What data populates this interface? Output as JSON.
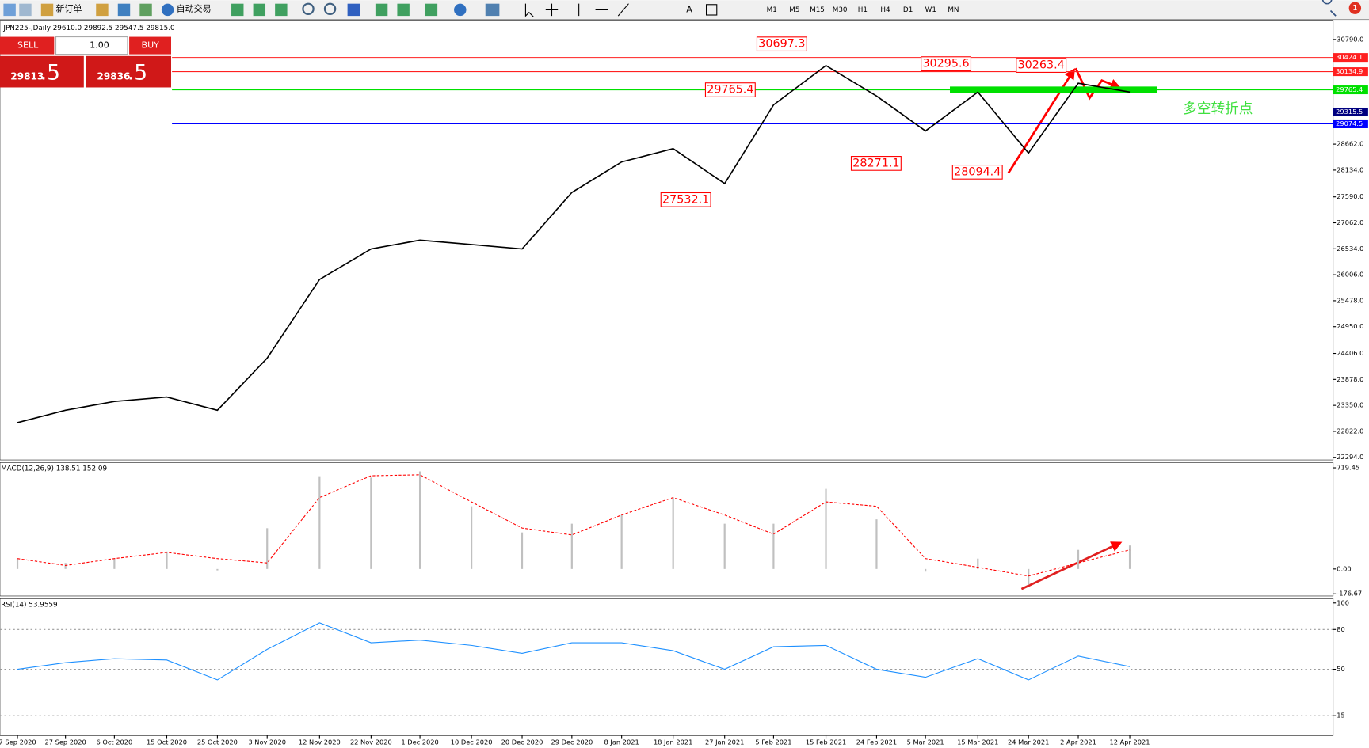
{
  "toolbar": {
    "new_order": "新订单",
    "auto_trading": "自动交易",
    "timeframes": [
      "M1",
      "M5",
      "M15",
      "M30",
      "H1",
      "H4",
      "D1",
      "W1",
      "MN"
    ],
    "badge": "1"
  },
  "trade_panel": {
    "sell": "SELL",
    "buy": "BUY",
    "volume": "1.00",
    "sell_price": {
      "main": "29813",
      "fraction": ".5"
    },
    "buy_price": {
      "main": "29836",
      "fraction": ".5"
    }
  },
  "chart_data": [
    {
      "type": "line",
      "title": "JPN225-,Daily 29610.0 29892.5 29547.5 29815.0",
      "categories": [
        "7 Sep 2020",
        "27 Sep 2020",
        "6 Oct 2020",
        "15 Oct 2020",
        "25 Oct 2020",
        "3 Nov 2020",
        "12 Nov 2020",
        "22 Nov 2020",
        "1 Dec 2020",
        "10 Dec 2020",
        "20 Dec 2020",
        "29 Dec 2020",
        "8 Jan 2021",
        "18 Jan 2021",
        "27 Jan 2021",
        "5 Feb 2021",
        "15 Feb 2021",
        "24 Feb 2021",
        "5 Mar 2021",
        "15 Mar 2021",
        "24 Mar 2021",
        "2 Apr 2021",
        "12 Apr 2021"
      ],
      "series": [
        {
          "color": "#000000",
          "values": [
            23000,
            23250,
            23430,
            23520,
            23250,
            24310,
            25910,
            26530,
            26710,
            26620,
            26530,
            27680,
            28300,
            28570,
            27860,
            29460,
            30260,
            29640,
            28930,
            29720,
            28480,
            29900,
            29720
          ]
        }
      ],
      "ylim": [
        22241,
        31145
      ],
      "yticks": [
        {
          "value": 30790,
          "label": "30790.0"
        },
        {
          "value": 28662,
          "label": "28662.0"
        },
        {
          "value": 28134,
          "label": "28134.0"
        },
        {
          "value": 27590,
          "label": "27590.0"
        },
        {
          "value": 27062,
          "label": "27062.0"
        },
        {
          "value": 26534,
          "label": "26534.0"
        },
        {
          "value": 26006,
          "label": "26006.0"
        },
        {
          "value": 25478,
          "label": "25478.0"
        },
        {
          "value": 24950,
          "label": "24950.0"
        },
        {
          "value": 24406,
          "label": "24406.0"
        },
        {
          "value": 23878,
          "label": "23878.0"
        },
        {
          "value": 23350,
          "label": "23350.0"
        },
        {
          "value": 22822,
          "label": "22822.0"
        },
        {
          "value": 22294,
          "label": "22294.0"
        }
      ],
      "levels": [
        {
          "value": 30424.1,
          "color": "#ff2020"
        },
        {
          "value": 30134.9,
          "color": "#ff2020"
        },
        {
          "value": 29765.4,
          "color": "#00e000"
        },
        {
          "value": 29315.5,
          "color": "#000080"
        },
        {
          "value": 29074.5,
          "color": "#0000ff"
        }
      ],
      "annotations": [
        30697.3,
        30295.6,
        30263.4,
        29765.4,
        28271.1,
        27532.1,
        28094.4
      ],
      "note": "多空转折点"
    },
    {
      "type": "macd",
      "title": "MACD(12,26,9) 138.51 152.09",
      "series": [
        {
          "name": "MACD",
          "color": "#c0c0c0",
          "values": [
            74,
            43,
            74,
            124,
            -10,
            290,
            660,
            650,
            694,
            446,
            260,
            322,
            384,
            508,
            322,
            322,
            570,
            353,
            -19,
            74,
            -112,
            136,
            167
          ]
        },
        {
          "name": "Signal",
          "color": "#ff0000",
          "values": [
            74,
            25,
            74,
            118,
            74,
            43,
            508,
            663,
            670,
            477,
            291,
            242,
            384,
            508,
            384,
            248,
            477,
            446,
            74,
            12,
            -50,
            43,
            136
          ]
        }
      ],
      "ylim": [
        -192,
        757
      ],
      "yticks": [
        {
          "value": 719.45,
          "label": "719.45"
        },
        {
          "value": 0,
          "label": "0.00"
        },
        {
          "value": -176.67,
          "label": "-176.67"
        }
      ]
    },
    {
      "type": "rsi",
      "title": "RSI(14) 53.9559",
      "series": [
        {
          "color": "#1e90ff",
          "values": [
            50,
            55,
            58,
            57,
            42,
            65,
            85,
            70,
            72,
            68,
            62,
            70,
            70,
            64,
            50,
            67,
            68,
            50,
            44,
            58,
            42,
            60,
            52
          ]
        }
      ],
      "ylim": [
        0,
        100
      ],
      "yticks": [
        100,
        80,
        50,
        15
      ]
    }
  ]
}
